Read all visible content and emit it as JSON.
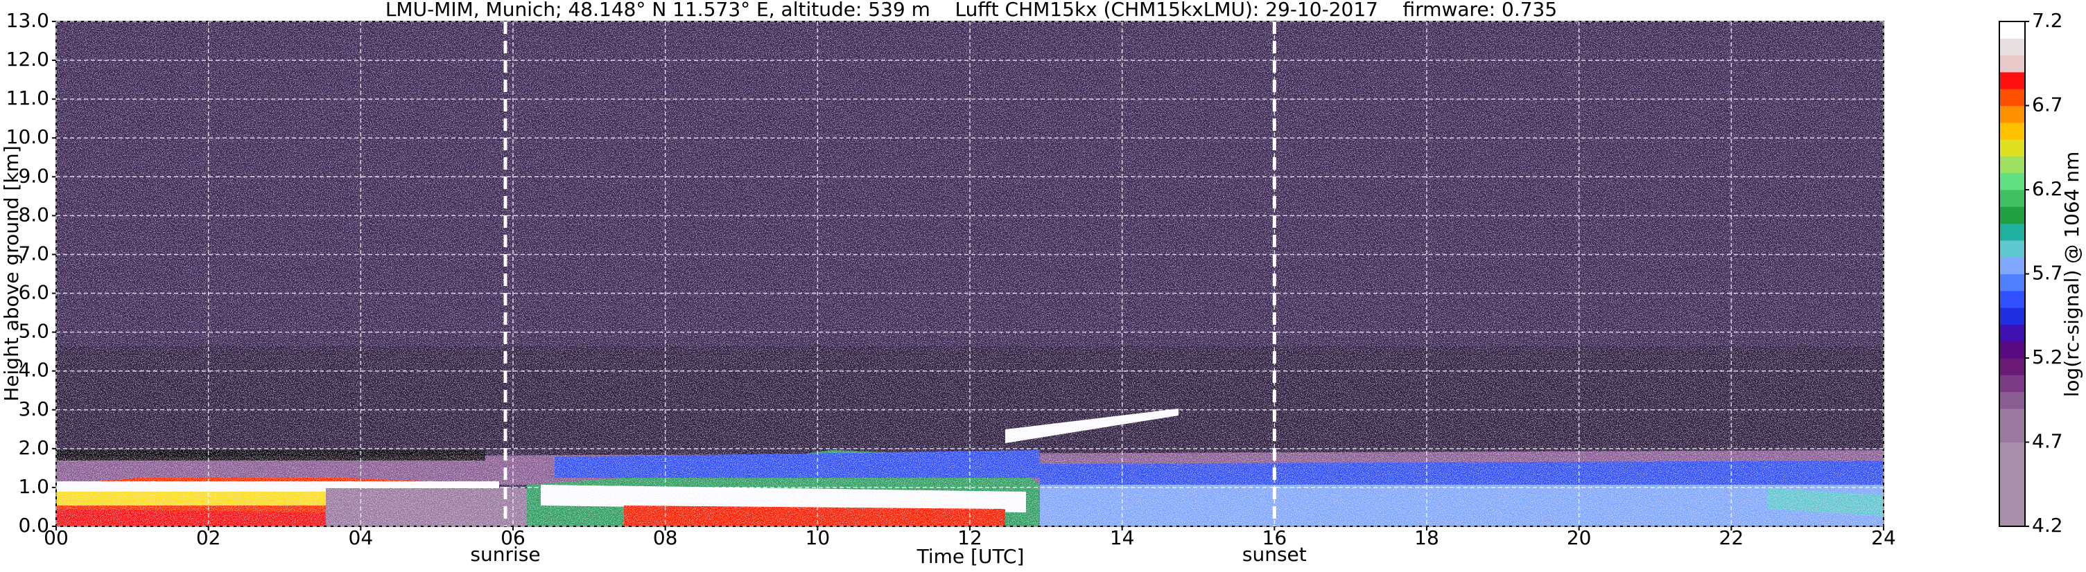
{
  "chart_data": {
    "type": "heatmap",
    "title": "LMU-MIM, Munich; 48.148° N 11.573° E, altitude: 539 m    Lufft CHM15kx (CHM15kxLMU): 29-10-2017    firmware: 0.735",
    "xlabel": "Time [UTC]",
    "ylabel": "Height above ground [km]",
    "xlim": [
      0,
      24
    ],
    "ylim": [
      0,
      13
    ],
    "xticks": [
      {
        "value": 0,
        "label": "00"
      },
      {
        "value": 2,
        "label": "02"
      },
      {
        "value": 4,
        "label": "04"
      },
      {
        "value": 6,
        "label": "06"
      },
      {
        "value": 8,
        "label": "08"
      },
      10,
      12,
      14,
      16,
      18,
      20,
      22,
      24
    ],
    "yticks": [
      {
        "value": 0,
        "label": "0.0"
      },
      {
        "value": 1,
        "label": "1.0"
      },
      {
        "value": 2,
        "label": "2.0"
      },
      {
        "value": 3,
        "label": "3.0"
      },
      {
        "value": 4,
        "label": "4.0"
      },
      {
        "value": 5,
        "label": "5.0"
      },
      {
        "value": 6,
        "label": "6.0"
      },
      {
        "value": 7,
        "label": "7.0"
      },
      {
        "value": 8,
        "label": "8.0"
      },
      {
        "value": 9,
        "label": "9.0"
      },
      {
        "value": 10,
        "label": "10.0"
      },
      {
        "value": 11,
        "label": "11.0"
      },
      {
        "value": 12,
        "label": "12.0"
      },
      {
        "value": 13,
        "label": "13.0"
      }
    ],
    "grid": true,
    "annotations": [
      {
        "x": 5.9,
        "label": "sunrise"
      },
      {
        "x": 16,
        "label": "sunset"
      }
    ],
    "colorbar": {
      "label": "log(rc-signal) @ 1064 nm",
      "lim": [
        4.2,
        7.2
      ],
      "ticks": [
        4.2,
        4.7,
        5.2,
        5.7,
        6.2,
        6.7,
        7.2
      ],
      "colors": [
        "#a890aa",
        "#a890aa",
        "#a890aa",
        "#a890aa",
        "#a890aa",
        "#9a7a9e",
        "#9a7a9e",
        "#8a5e92",
        "#7a3a84",
        "#6a1a74",
        "#5a0a80",
        "#4010b0",
        "#2030e0",
        "#3050ff",
        "#5080ff",
        "#80a8ff",
        "#60c8d0",
        "#20b0a0",
        "#20a040",
        "#40c060",
        "#60e080",
        "#a0e060",
        "#e0e020",
        "#ffc000",
        "#ff9000",
        "#ff5000",
        "#ff1010",
        "#e8c8c8",
        "#e8e0e0",
        "#ffffff"
      ]
    }
  }
}
